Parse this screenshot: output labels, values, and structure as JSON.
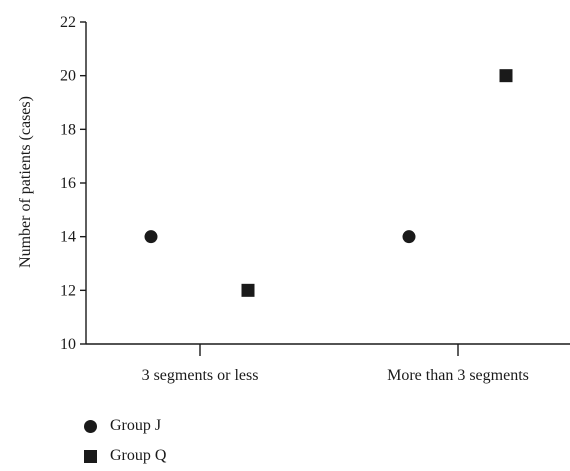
{
  "chart_data": {
    "type": "scatter",
    "categories": [
      "3 segments or less",
      "More than 3 segments"
    ],
    "series": [
      {
        "name": "Group J",
        "marker": "circle",
        "values": [
          14,
          14
        ]
      },
      {
        "name": "Group Q",
        "marker": "square",
        "values": [
          12,
          20
        ]
      }
    ],
    "ylabel": "Number of patients (cases)",
    "xlabel": "",
    "ylim": [
      10,
      22
    ],
    "yticks": [
      10,
      12,
      14,
      16,
      18,
      20,
      22
    ],
    "grid": false,
    "legend_position": "bottom-left",
    "colors": {
      "marker": "#1a1a1a",
      "axis": "#1a1a1a"
    }
  }
}
